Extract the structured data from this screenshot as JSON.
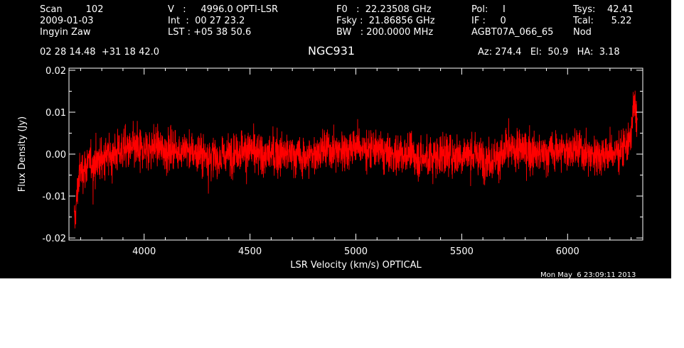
{
  "header": {
    "col1": [
      "Scan        102",
      "2009-01-03",
      "Ingyin Zaw"
    ],
    "col2": [
      "V   :     4996.0 OPTI-LSR",
      "Int  :  00 27 23.2",
      "LST : +05 38 50.6"
    ],
    "col3": [
      "F0   :  22.23508 GHz",
      "Fsky :  21.86856 GHz",
      "BW   : 200.0000 MHz"
    ],
    "col4": [
      "Pol:     I",
      "IF :     0",
      "AGBT07A_066_65"
    ],
    "col5": [
      "Tsys:    42.41",
      "Tcal:      5.22",
      "Nod"
    ],
    "coords": "02 28 14.48  +31 18 42.0",
    "source": "NGC931",
    "azelha": "Az: 274.4   El:  50.9   HA:  3.18",
    "timestamp": "Mon May  6 23:09:11 2013"
  },
  "colors": {
    "background": "#000000",
    "trace": "#ff0000",
    "text": "#ffffff"
  },
  "chart_data": {
    "type": "line",
    "xlabel": "LSR Velocity (km/s) OPTICAL",
    "ylabel": "Flux Density (Jy)",
    "xlim": [
      3645,
      6355
    ],
    "ylim": [
      -0.0205,
      0.0205
    ],
    "x_ticks": [
      4000,
      4500,
      5000,
      5500,
      6000
    ],
    "x_tick_labels": [
      "4000",
      "4500",
      "5000",
      "5500",
      "6000"
    ],
    "y_ticks": [
      -0.02,
      -0.01,
      0.0,
      0.01,
      0.02
    ],
    "y_tick_labels": [
      "-0.02",
      "-0.01",
      "0.00",
      "0.01",
      "0.02"
    ],
    "grid": false,
    "series": [
      {
        "x": [
          3670,
          3680,
          3690,
          3700,
          3720,
          3750,
          3800,
          3850,
          3900,
          3950,
          4000,
          4050,
          4100,
          4150,
          4200,
          4250,
          4300,
          4350,
          4400,
          4450,
          4500,
          4550,
          4600,
          4650,
          4700,
          4750,
          4800,
          4850,
          4900,
          4950,
          5000,
          5050,
          5100,
          5150,
          5200,
          5250,
          5300,
          5350,
          5400,
          5450,
          5500,
          5550,
          5600,
          5650,
          5700,
          5750,
          5800,
          5850,
          5900,
          5950,
          6000,
          6050,
          6100,
          6150,
          6200,
          6250,
          6280,
          6300,
          6310,
          6320,
          6330
        ],
        "y": [
          -0.017,
          -0.012,
          -0.006,
          -0.004,
          -0.003,
          -0.002,
          -0.001,
          0.0,
          0.001,
          0.001,
          0.001,
          0.002,
          0.001,
          0.001,
          0.001,
          0.0,
          0.0,
          -0.001,
          0.0,
          0.001,
          0.001,
          0.0,
          0.0,
          0.0,
          0.0,
          -0.001,
          0.0,
          0.001,
          0.001,
          0.001,
          0.002,
          0.001,
          0.001,
          0.0,
          0.0,
          0.0,
          -0.001,
          -0.001,
          0.0,
          0.0,
          0.0,
          0.0,
          -0.001,
          -0.001,
          0.0,
          0.001,
          0.001,
          0.0,
          0.0,
          0.001,
          0.001,
          0.001,
          0.0,
          0.0,
          0.0,
          0.001,
          0.002,
          0.004,
          0.01,
          0.012,
          0.008
        ]
      }
    ]
  }
}
